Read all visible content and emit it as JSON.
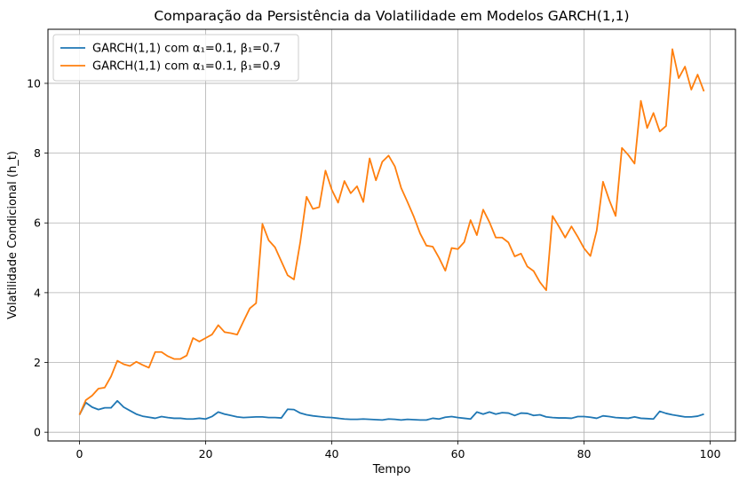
{
  "chart_data": {
    "type": "line",
    "title": "Comparação da Persistência da Volatilidade em Modelos GARCH(1,1)",
    "xlabel": "Tempo",
    "ylabel": "Volatilidade Condicional (h_t)",
    "xlim": [
      -5,
      104
    ],
    "ylim": [
      -0.25,
      11.55
    ],
    "xticks": [
      0,
      20,
      40,
      60,
      80,
      100
    ],
    "yticks": [
      0,
      2,
      4,
      6,
      8,
      10
    ],
    "grid": true,
    "legend_position": "top-left",
    "series": [
      {
        "name": "GARCH(1,1) com α₁=0.1, β₁=0.7",
        "color": "#1f77b4",
        "values": [
          0.5,
          0.85,
          0.72,
          0.65,
          0.7,
          0.7,
          0.9,
          0.72,
          0.62,
          0.52,
          0.46,
          0.43,
          0.4,
          0.45,
          0.42,
          0.4,
          0.4,
          0.38,
          0.38,
          0.4,
          0.38,
          0.45,
          0.58,
          0.52,
          0.48,
          0.44,
          0.42,
          0.43,
          0.44,
          0.44,
          0.42,
          0.42,
          0.41,
          0.66,
          0.65,
          0.55,
          0.5,
          0.47,
          0.45,
          0.43,
          0.42,
          0.4,
          0.38,
          0.37,
          0.37,
          0.38,
          0.37,
          0.36,
          0.35,
          0.38,
          0.37,
          0.35,
          0.37,
          0.36,
          0.35,
          0.35,
          0.4,
          0.38,
          0.43,
          0.45,
          0.42,
          0.4,
          0.38,
          0.58,
          0.52,
          0.58,
          0.52,
          0.56,
          0.55,
          0.48,
          0.55,
          0.54,
          0.48,
          0.5,
          0.44,
          0.42,
          0.41,
          0.41,
          0.4,
          0.45,
          0.45,
          0.43,
          0.4,
          0.47,
          0.45,
          0.42,
          0.41,
          0.4,
          0.44,
          0.4,
          0.39,
          0.38,
          0.6,
          0.54,
          0.5,
          0.47,
          0.44,
          0.44,
          0.46,
          0.52
        ]
      },
      {
        "name": "GARCH(1,1) com α₁=0.1, β₁=0.9",
        "color": "#ff7f0e",
        "values": [
          0.5,
          0.92,
          1.05,
          1.25,
          1.28,
          1.6,
          2.05,
          1.95,
          1.9,
          2.02,
          1.93,
          1.85,
          2.3,
          2.3,
          2.18,
          2.1,
          2.1,
          2.2,
          2.7,
          2.6,
          2.7,
          2.8,
          3.07,
          2.87,
          2.84,
          2.8,
          3.18,
          3.55,
          3.7,
          5.97,
          5.5,
          5.3,
          4.9,
          4.5,
          4.38,
          5.45,
          6.75,
          6.4,
          6.45,
          7.5,
          6.95,
          6.58,
          7.2,
          6.85,
          7.05,
          6.6,
          7.85,
          7.22,
          7.75,
          7.93,
          7.62,
          7.0,
          6.6,
          6.18,
          5.7,
          5.35,
          5.32,
          5.0,
          4.63,
          5.28,
          5.25,
          5.45,
          6.08,
          5.65,
          6.38,
          6.02,
          5.58,
          5.58,
          5.44,
          5.04,
          5.12,
          4.75,
          4.62,
          4.3,
          4.07,
          6.2,
          5.9,
          5.58,
          5.9,
          5.6,
          5.27,
          5.05,
          5.78,
          7.18,
          6.65,
          6.2,
          8.15,
          7.95,
          7.7,
          9.5,
          8.72,
          9.15,
          8.62,
          8.78,
          10.98,
          10.15,
          10.48,
          9.82,
          10.25,
          9.77
        ]
      }
    ]
  }
}
